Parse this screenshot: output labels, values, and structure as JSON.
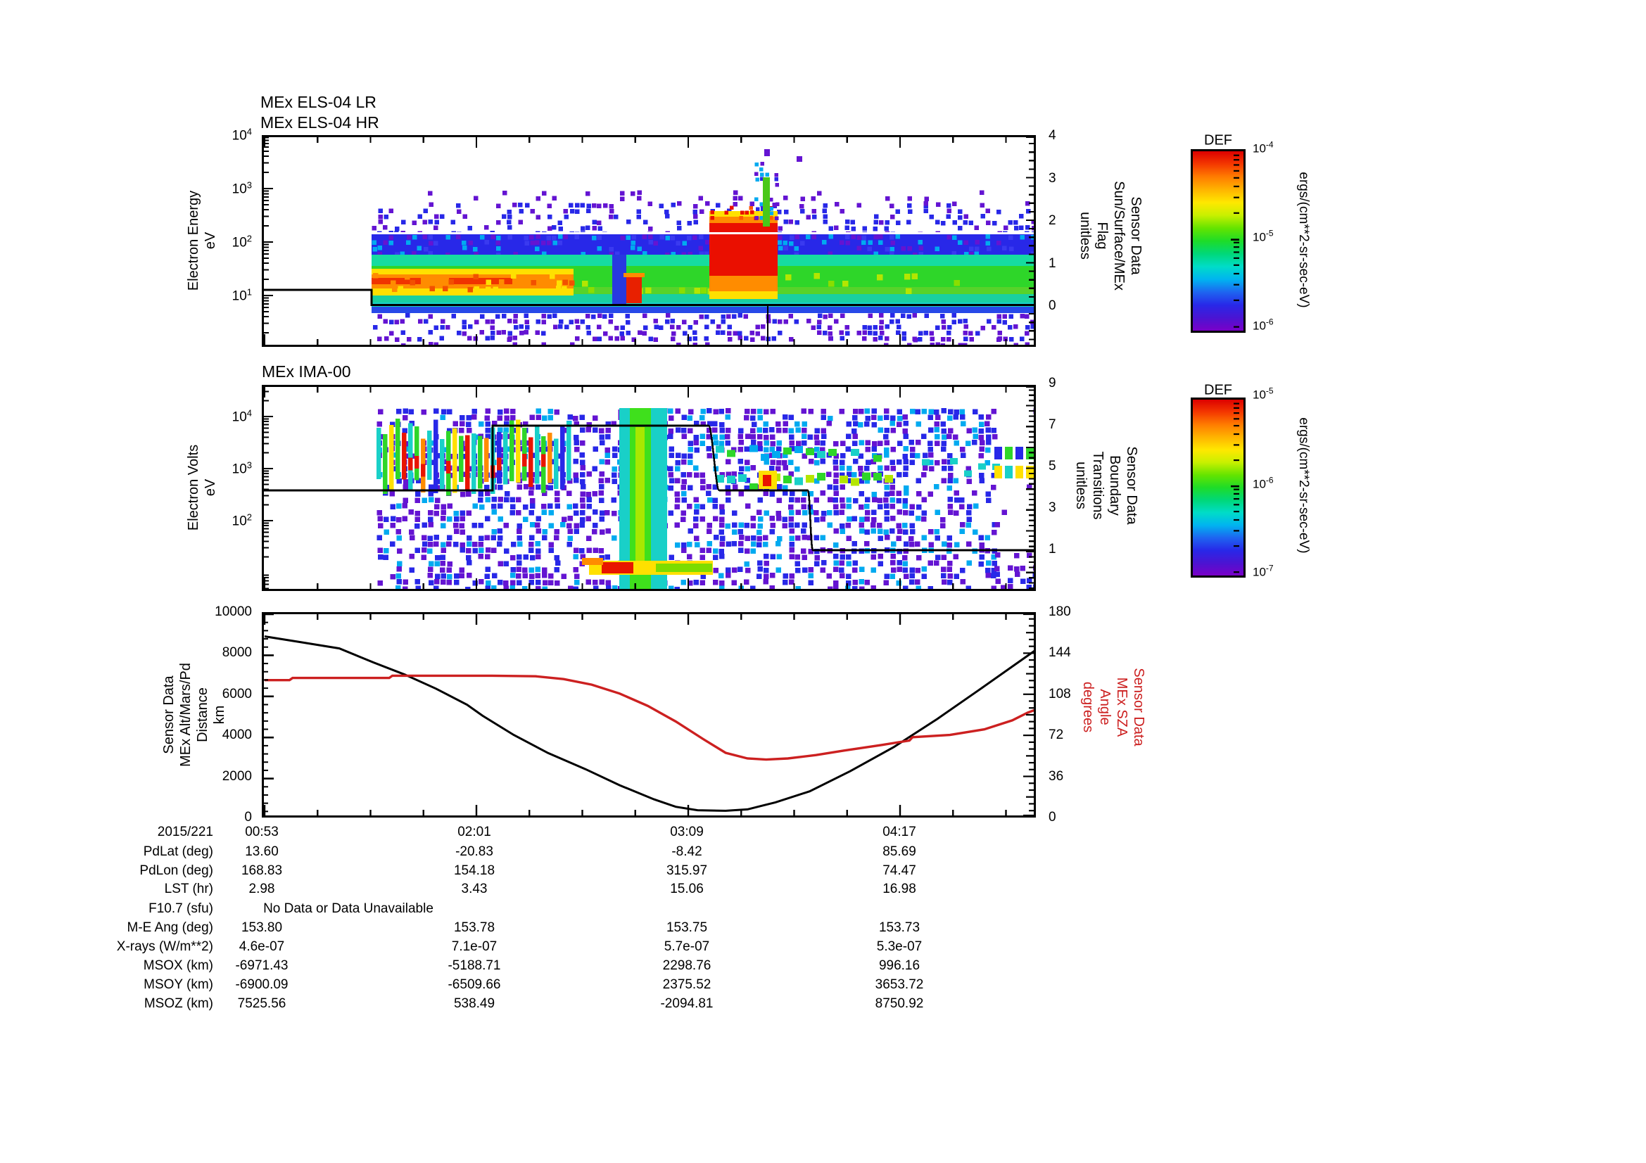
{
  "panels": {
    "els": {
      "titles": [
        "MEx ELS-04 LR",
        "MEx ELS-04 HR"
      ],
      "left_label_lines": [
        "Electron Energy",
        "eV"
      ],
      "left_ticks": [
        "10^4",
        "10^3",
        "10^2",
        "10^1"
      ],
      "right_ticks": [
        "4",
        "3",
        "2",
        "1",
        "0"
      ],
      "right_label_lines": [
        "Sensor Data",
        "Sun/Surface/MEx",
        "Flag",
        "unitless"
      ]
    },
    "ima": {
      "title": "MEx IMA-00",
      "left_label_lines": [
        "Electron Volts",
        "eV"
      ],
      "left_ticks": [
        "10^4",
        "10^3",
        "10^2"
      ],
      "right_ticks": [
        "9",
        "7",
        "5",
        "3",
        "1"
      ],
      "right_label_lines": [
        "Sensor Data",
        "Boundary",
        "Transitions",
        "unitless"
      ]
    },
    "line": {
      "left_label_lines": [
        "Sensor Data",
        "MEx Alt/Mars/Pd",
        "Distance",
        "km"
      ],
      "left_ticks": [
        "10000",
        "8000",
        "6000",
        "4000",
        "2000",
        "0"
      ],
      "right_ticks": [
        "180",
        "144",
        "108",
        "72",
        "36",
        "0"
      ],
      "right_label_lines": [
        "Sensor Data",
        "MEx SZA",
        "Angle",
        "degrees"
      ]
    }
  },
  "colorbars": [
    {
      "title": "DEF",
      "ticks": [
        "10^-4",
        "10^-5",
        "10^-6"
      ],
      "unit": "ergs/(cm**2-sr-sec-eV)"
    },
    {
      "title": "DEF",
      "ticks": [
        "10^-5",
        "10^-6",
        "10^-7"
      ],
      "unit": "ergs/(cm**2-sr-sec-eV)"
    }
  ],
  "colors": {
    "sza_red": "#cc2020",
    "frame": "#000000",
    "colorbar_stops": [
      "#dc0000",
      "#f43800",
      "#ff7d00",
      "#ffb400",
      "#ffe800",
      "#c8f000",
      "#64e400",
      "#1edc28",
      "#00d878",
      "#00dcc8",
      "#00b4f0",
      "#1e64f0",
      "#2828e8",
      "#4b14d2",
      "#7a00c8"
    ]
  },
  "table": {
    "rows": [
      {
        "label": "2015/221",
        "values": [
          "00:53",
          "02:01",
          "03:09",
          "04:17"
        ]
      },
      {
        "label": "PdLat (deg)",
        "values": [
          "13.60",
          "-20.83",
          "-8.42",
          "85.69"
        ]
      },
      {
        "label": "PdLon (deg)",
        "values": [
          "168.83",
          "154.18",
          "315.97",
          "74.47"
        ]
      },
      {
        "label": "LST (hr)",
        "values": [
          "2.98",
          "3.43",
          "15.06",
          "16.98"
        ]
      },
      {
        "label": "F10.7 (sfu)",
        "note": "No Data or Data Unavailable"
      },
      {
        "label": "M-E Ang (deg)",
        "values": [
          "153.80",
          "153.78",
          "153.75",
          "153.73"
        ]
      },
      {
        "label": "X-rays (W/m**2)",
        "values": [
          "4.6e-07",
          "7.1e-07",
          "5.7e-07",
          "5.3e-07"
        ]
      },
      {
        "label": "MSOX (km)",
        "values": [
          "-6971.43",
          "-5188.71",
          "2298.76",
          "996.16"
        ]
      },
      {
        "label": "MSOY (km)",
        "values": [
          "-6900.09",
          "-6509.66",
          "2375.52",
          "3653.72"
        ]
      },
      {
        "label": "MSOZ (km)",
        "values": [
          "7525.56",
          "538.49",
          "-2094.81",
          "8750.92"
        ]
      }
    ]
  },
  "chart_data": [
    {
      "type": "heatmap",
      "title": "MEx ELS-04 LR / MEx ELS-04 HR",
      "ylabel": "Electron Energy eV",
      "yscale": "log",
      "yticks": [
        "10^1",
        "10^2",
        "10^3",
        "10^4"
      ],
      "xticks_time": [
        "00:53",
        "02:01",
        "03:09",
        "04:17"
      ],
      "right_axis": {
        "label": "Sensor Data Sun/Surface/MEx Flag unitless",
        "ticks": [
          0,
          1,
          2,
          3,
          4
        ]
      },
      "colorbar": {
        "title": "DEF",
        "unit": "ergs/(cm**2-sr-sec-eV)",
        "range": [
          "10^-6",
          "10^-4"
        ]
      },
      "notes": "Electron spectrogram; data begins ~01:25. Warm yellow/orange core 10-50 eV until ~02:30, intense red enhancement 30-300 eV near 03:05-03:25 with spike to 1 keV, green band 10-100 eV after. Thin white line near 100 eV. Black flag line near 0 with downward spike at ~03:08."
    },
    {
      "type": "heatmap",
      "title": "MEx IMA-00",
      "ylabel": "Electron Volts eV",
      "yscale": "log",
      "yticks": [
        "10^2",
        "10^3",
        "10^4"
      ],
      "xticks_time": [
        "00:53",
        "02:01",
        "03:09",
        "04:17"
      ],
      "right_axis": {
        "label": "Sensor Data Boundary Transitions unitless",
        "ticks": [
          1,
          3,
          5,
          7,
          9
        ]
      },
      "colorbar": {
        "title": "DEF",
        "unit": "ergs/(cm**2-sr-sec-eV)",
        "range": [
          "10^-7",
          "10^-5"
        ]
      },
      "notes": "Ion spectrogram; sparse blue/purple counts from ~01:25. Striped green-yellow-red band 600 eV-4 keV until ~02:25, bright full-height green column ~02:40, dashed cyan/green rows ~1 keV after 03:10, near-empty strip before right edge. Black boundary-transition step line from level 4 up to 7 then down to 1."
    },
    {
      "type": "line",
      "x_unit": "minutes after 00:53",
      "xticks_time": [
        "00:53",
        "02:01",
        "03:09",
        "04:17"
      ],
      "ylim_left": [
        0,
        10000
      ],
      "ylim_right": [
        0,
        180
      ],
      "series": [
        {
          "name": "MEx Alt/Mars/Pd Distance km",
          "axis": "left",
          "color": "#000000",
          "points": [
            [
              0,
              8900
            ],
            [
              12,
              8600
            ],
            [
              24,
              8300
            ],
            [
              35,
              7600
            ],
            [
              45,
              7000
            ],
            [
              55,
              6300
            ],
            [
              65,
              5500
            ],
            [
              70,
              4950
            ],
            [
              80,
              4000
            ],
            [
              91,
              3100
            ],
            [
              103,
              2300
            ],
            [
              114,
              1500
            ],
            [
              125,
              800
            ],
            [
              132,
              430
            ],
            [
              139,
              260
            ],
            [
              148,
              230
            ],
            [
              155,
              300
            ],
            [
              164,
              650
            ],
            [
              175,
              1200
            ],
            [
              188,
              2200
            ],
            [
              202,
              3400
            ],
            [
              216,
              4800
            ],
            [
              229,
              6200
            ],
            [
              240,
              7400
            ],
            [
              248,
              8270
            ]
          ]
        },
        {
          "name": "MEx SZA Angle degrees",
          "axis": "right",
          "color": "#cc2020",
          "points": [
            [
              0,
              121
            ],
            [
              8,
              121
            ],
            [
              9,
              123
            ],
            [
              40,
              123
            ],
            [
              41,
              125
            ],
            [
              73,
              125
            ],
            [
              87,
              124.5
            ],
            [
              96,
              122
            ],
            [
              105,
              117
            ],
            [
              114,
              109
            ],
            [
              123,
              98
            ],
            [
              132,
              84
            ],
            [
              141,
              68
            ],
            [
              148,
              56
            ],
            [
              155,
              51
            ],
            [
              161,
              50
            ],
            [
              168,
              51
            ],
            [
              177,
              54
            ],
            [
              186,
              58
            ],
            [
              198,
              63
            ],
            [
              207,
              67
            ],
            [
              208,
              70
            ],
            [
              220,
              72
            ],
            [
              231,
              77
            ],
            [
              240,
              85
            ],
            [
              245,
              92
            ],
            [
              248,
              95
            ]
          ]
        }
      ]
    }
  ]
}
